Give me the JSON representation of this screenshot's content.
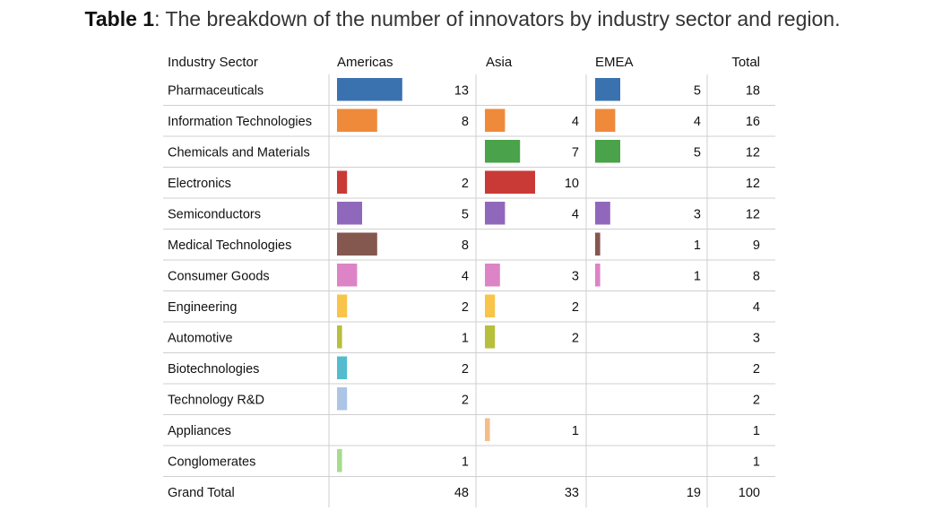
{
  "caption": {
    "label": "Table 1",
    "text": ": The breakdown of the number of innovators by industry sector and region."
  },
  "chart_data": {
    "type": "table",
    "columns": [
      "Industry Sector",
      "Americas",
      "Asia",
      "EMEA",
      "Total"
    ],
    "rows": [
      {
        "sector": "Pharmaceuticals",
        "color": "#3a72b0",
        "americas": 13,
        "asia": null,
        "emea": 5,
        "total": 18
      },
      {
        "sector": "Information Technologies",
        "color": "#ef8a3a",
        "americas": 8,
        "asia": 4,
        "emea": 4,
        "total": 16
      },
      {
        "sector": "Chemicals and Materials",
        "color": "#4aa24a",
        "americas": null,
        "asia": 7,
        "emea": 5,
        "total": 12
      },
      {
        "sector": "Electronics",
        "color": "#c93a36",
        "americas": 2,
        "asia": 10,
        "emea": null,
        "total": 12
      },
      {
        "sector": "Semiconductors",
        "color": "#9068bb",
        "americas": 5,
        "asia": 4,
        "emea": 3,
        "total": 12
      },
      {
        "sector": "Medical Technologies",
        "color": "#84574f",
        "americas": 8,
        "asia": null,
        "emea": 1,
        "total": 9
      },
      {
        "sector": "Consumer Goods",
        "color": "#dd84c6",
        "americas": 4,
        "asia": 3,
        "emea": 1,
        "total": 8
      },
      {
        "sector": "Engineering",
        "color": "#f8c44a",
        "americas": 2,
        "asia": 2,
        "emea": null,
        "total": 4
      },
      {
        "sector": "Automotive",
        "color": "#b7bf3c",
        "americas": 1,
        "asia": 2,
        "emea": null,
        "total": 3
      },
      {
        "sector": "Biotechnologies",
        "color": "#55bcd0",
        "americas": 2,
        "asia": null,
        "emea": null,
        "total": 2
      },
      {
        "sector": "Technology R&D",
        "color": "#acc5e6",
        "americas": 2,
        "asia": null,
        "emea": null,
        "total": 2
      },
      {
        "sector": "Appliances",
        "color": "#f3be8a",
        "americas": null,
        "asia": 1,
        "emea": null,
        "total": 1
      },
      {
        "sector": "Conglomerates",
        "color": "#a6dc8c",
        "americas": 1,
        "asia": null,
        "emea": null,
        "total": 1
      }
    ],
    "grand_total": {
      "label": "Grand Total",
      "americas": 48,
      "asia": 33,
      "emea": 19,
      "total": 100
    }
  }
}
